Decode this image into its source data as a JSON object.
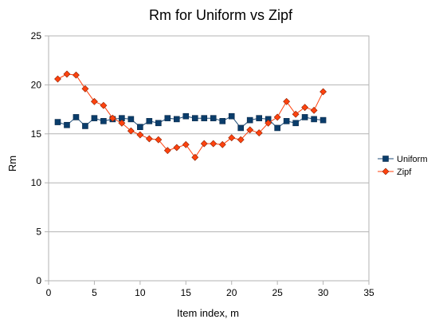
{
  "chart_data": {
    "type": "line",
    "title": "Rm for Uniform vs Zipf",
    "xlabel": "Item index, m",
    "ylabel": "Rm",
    "xlim": [
      0,
      35
    ],
    "ylim": [
      0,
      25
    ],
    "xticks": [
      0,
      5,
      10,
      15,
      20,
      25,
      30,
      35
    ],
    "yticks": [
      0,
      5,
      10,
      15,
      20,
      25
    ],
    "grid": "horizontal",
    "legend_position": "right",
    "series": [
      {
        "name": "Uniform",
        "marker": "square",
        "line_color": "#1f4e79",
        "marker_color": "#0a3d6b",
        "x": [
          1,
          2,
          3,
          4,
          5,
          6,
          7,
          8,
          9,
          10,
          11,
          12,
          13,
          14,
          15,
          16,
          17,
          18,
          19,
          20,
          21,
          22,
          23,
          24,
          25,
          26,
          27,
          28,
          29,
          30
        ],
        "values": [
          16.2,
          15.9,
          16.7,
          15.8,
          16.6,
          16.3,
          16.5,
          16.6,
          16.5,
          15.7,
          16.3,
          16.1,
          16.6,
          16.5,
          16.8,
          16.6,
          16.6,
          16.6,
          16.3,
          16.8,
          15.6,
          16.4,
          16.6,
          16.5,
          15.6,
          16.3,
          16.1,
          16.7,
          16.5,
          16.4
        ]
      },
      {
        "name": "Zipf",
        "marker": "diamond",
        "line_color": "#ff420e",
        "marker_color": "#ff420e",
        "x": [
          1,
          2,
          3,
          4,
          5,
          6,
          7,
          8,
          9,
          10,
          11,
          12,
          13,
          14,
          15,
          16,
          17,
          18,
          19,
          20,
          21,
          22,
          23,
          24,
          25,
          26,
          27,
          28,
          29,
          30
        ],
        "values": [
          20.6,
          21.1,
          21.0,
          19.6,
          18.3,
          17.9,
          16.6,
          16.1,
          15.3,
          14.9,
          14.5,
          14.4,
          13.3,
          13.6,
          13.9,
          12.6,
          14.0,
          14.0,
          13.9,
          14.6,
          14.4,
          15.4,
          15.1,
          16.1,
          16.7,
          18.3,
          17.0,
          17.7,
          17.4,
          19.3
        ]
      }
    ]
  }
}
